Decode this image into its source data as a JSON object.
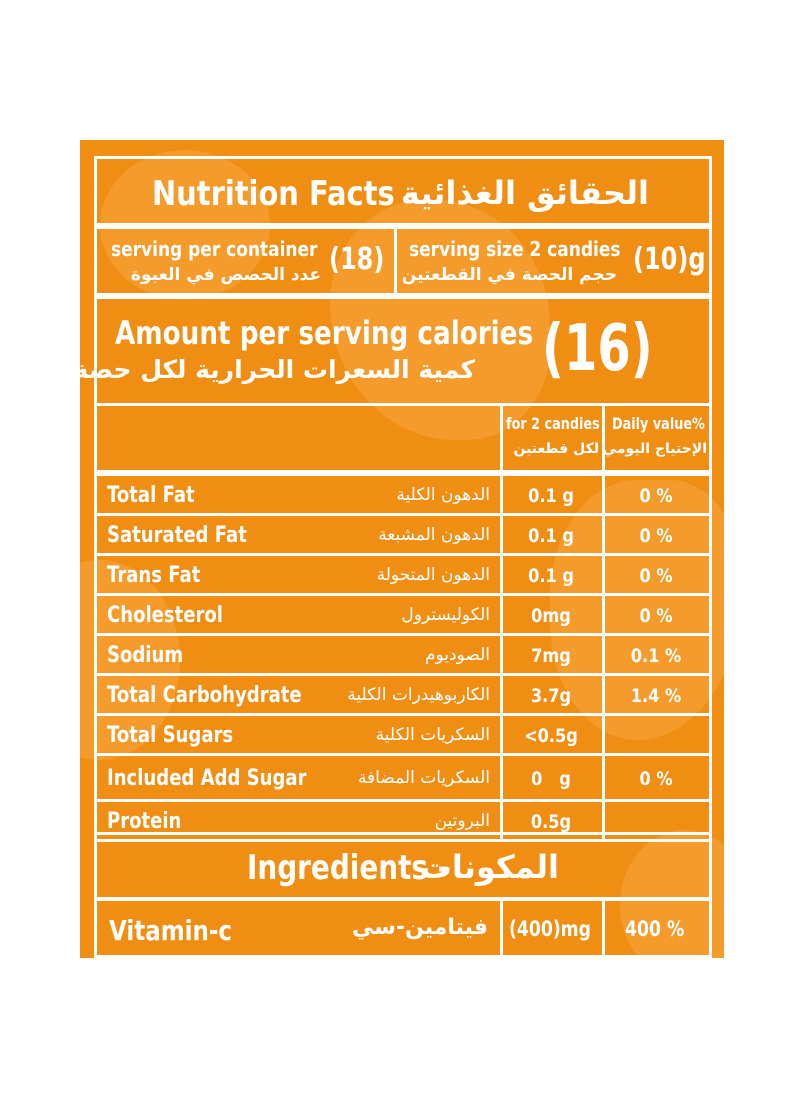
{
  "title": {
    "en": "Nutrition Facts -",
    "ar": "الحقائق الغذائية"
  },
  "serving_per_container": {
    "en": "serving per container",
    "ar": "عدد الحصص في العبوة",
    "value": "(18)"
  },
  "serving_size": {
    "en": "serving size 2 candies",
    "ar": "حجم الحصة في القطعتين",
    "value": "(10)g"
  },
  "calories": {
    "en": "Amount per serving calories",
    "ar": "كمية السعرات الحرارية لكل حصة",
    "value": "(16)"
  },
  "columns": {
    "amount_en": "for 2 candies",
    "amount_ar": "لكل قطعتين",
    "dv_en": "Daily value%",
    "dv_ar": "الإحتياج اليومي"
  },
  "rows": [
    {
      "en": "Total Fat",
      "ar": "الدهون الكلية",
      "amount": "0.1 g",
      "dv": "0 %"
    },
    {
      "en": "Saturated Fat",
      "ar": "الدهون المشبعة",
      "amount": "0.1 g",
      "dv": "0 %"
    },
    {
      "en": "Trans Fat",
      "ar": "الدهون المتحولة",
      "amount": "0.1 g",
      "dv": "0 %"
    },
    {
      "en": "Cholesterol",
      "ar": "الكوليسترول",
      "amount": "0mg",
      "dv": "0 %"
    },
    {
      "en": "Sodium",
      "ar": "الصوديوم",
      "amount": "7mg",
      "dv": "0.1 %"
    },
    {
      "en": "Total Carbohydrate",
      "ar": "الكاربوهيدرات الكلية",
      "amount": "3.7g",
      "dv": "1.4 %"
    },
    {
      "en": "Total Sugars",
      "ar": "السكريات الكلية",
      "amount": "<0.5g",
      "dv": ""
    },
    {
      "en": "Included Add Sugar",
      "ar": "السكريات المضافة",
      "amount": "0   g",
      "dv": "0 %"
    },
    {
      "en": "Protein",
      "ar": "البروتين",
      "amount": "0.5g",
      "dv": ""
    }
  ],
  "ingredients": {
    "en": "Ingredients -",
    "ar": "المكونات"
  },
  "vitamin": {
    "en": "Vitamin-c",
    "ar": "فيتامين-سي",
    "amount": "(400)mg",
    "dv": "400 %"
  },
  "colors": {
    "panel": "#f08e14",
    "border": "#ffffff",
    "text": "#ffffff"
  }
}
